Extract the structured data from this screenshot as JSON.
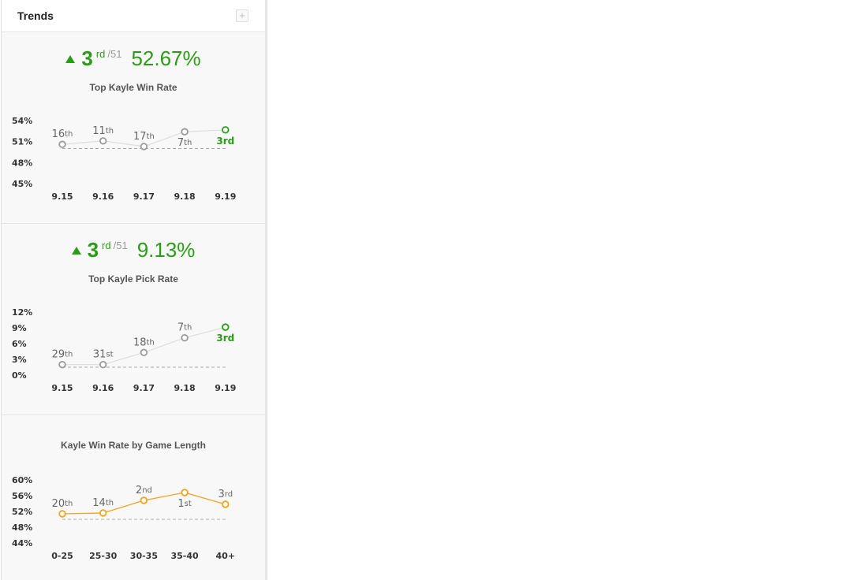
{
  "panel": {
    "title": "Trends",
    "add_icon": "plus-icon"
  },
  "colors": {
    "accent": "#2a9d17",
    "grey": "#9a9a9a",
    "orange": "#f0a420",
    "baseline": "#aaaaaa"
  },
  "win_rate": {
    "rank": "3",
    "rank_suffix": "rd",
    "rank_total": "/51",
    "value": "52.67%",
    "chart_title": "Top Kayle Win Rate"
  },
  "pick_rate": {
    "rank": "3",
    "rank_suffix": "rd",
    "rank_total": "/51",
    "value": "9.13%",
    "chart_title": "Top Kayle Pick Rate"
  },
  "game_length": {
    "chart_title": "Kayle Win Rate by Game Length"
  },
  "chart_data": [
    {
      "type": "line",
      "title": "Top Kayle Win Rate",
      "categories": [
        "9.15",
        "9.16",
        "9.17",
        "9.18",
        "9.19"
      ],
      "values": [
        50.6,
        51.1,
        50.3,
        52.4,
        52.67
      ],
      "ranks": [
        [
          "16",
          "th"
        ],
        [
          "11",
          "th"
        ],
        [
          "17",
          "th"
        ],
        [
          "7",
          "th"
        ],
        [
          "3",
          "rd"
        ]
      ],
      "rank_label_pos": [
        "above",
        "above",
        "above",
        "below",
        "below"
      ],
      "yticks": [
        "54%",
        "51%",
        "48%",
        "45%"
      ],
      "ylim": [
        45,
        54
      ],
      "baseline": 50,
      "colors": [
        "grey",
        "grey",
        "grey",
        "grey",
        "green"
      ],
      "highlight_last": true
    },
    {
      "type": "line",
      "title": "Top Kayle Pick Rate",
      "categories": [
        "9.15",
        "9.16",
        "9.17",
        "9.18",
        "9.19"
      ],
      "values": [
        2.0,
        2.0,
        4.3,
        7.1,
        9.13
      ],
      "ranks": [
        [
          "29",
          "th"
        ],
        [
          "31",
          "st"
        ],
        [
          "18",
          "th"
        ],
        [
          "7",
          "th"
        ],
        [
          "3",
          "rd"
        ]
      ],
      "rank_label_pos": [
        "above",
        "above",
        "above",
        "above",
        "below"
      ],
      "yticks": [
        "12%",
        "9%",
        "6%",
        "3%",
        "0%"
      ],
      "ylim": [
        0,
        12
      ],
      "baseline": 1.5,
      "colors": [
        "grey",
        "grey",
        "grey",
        "grey",
        "green"
      ],
      "highlight_last": true
    },
    {
      "type": "line",
      "title": "Kayle Win Rate by Game Length",
      "categories": [
        "0-25",
        "25-30",
        "30-35",
        "35-40",
        "40+"
      ],
      "values": [
        51.4,
        51.6,
        54.8,
        56.8,
        53.8
      ],
      "ranks": [
        [
          "20",
          "th"
        ],
        [
          "14",
          "th"
        ],
        [
          "2",
          "nd"
        ],
        [
          "1",
          "st"
        ],
        [
          "3",
          "rd"
        ]
      ],
      "rank_label_pos": [
        "above",
        "above",
        "above",
        "below",
        "above"
      ],
      "yticks": [
        "60%",
        "56%",
        "52%",
        "48%",
        "44%"
      ],
      "ylim": [
        44,
        60
      ],
      "baseline": 50,
      "colors": [
        "orange",
        "orange",
        "orange",
        "orange",
        "orange"
      ],
      "highlight_last": false
    }
  ]
}
